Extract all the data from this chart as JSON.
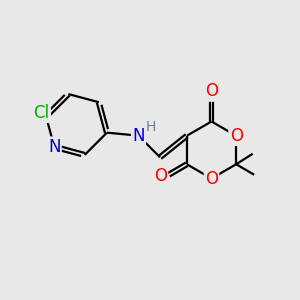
{
  "background_color": "#e8e8e8",
  "atom_colors": {
    "C": "#000000",
    "N": "#0000cc",
    "O": "#ff0000",
    "Cl": "#00aa00",
    "H": "#708090"
  },
  "figsize": [
    3.0,
    3.0
  ],
  "dpi": 100,
  "xlim": [
    0,
    10
  ],
  "ylim": [
    0,
    10
  ],
  "bond_lw": 1.6,
  "font_size": 12,
  "double_sep": 0.13
}
